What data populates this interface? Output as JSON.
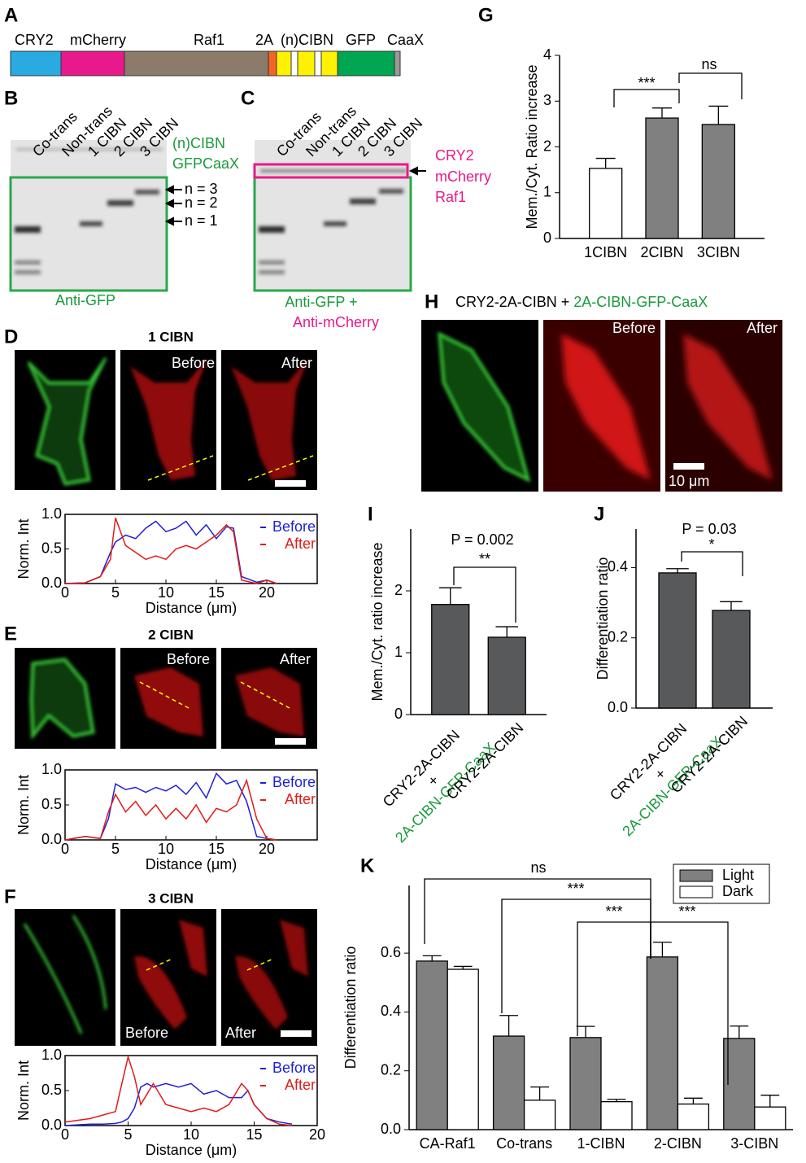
{
  "figure": {
    "panel_a": {
      "letter": "A",
      "labels": [
        "CRY2",
        "mCherry",
        "Raf1",
        "2A",
        "(n)CIBN",
        "GFP",
        "CaaX"
      ]
    },
    "panel_b": {
      "letter": "B",
      "lanes": [
        "Co-trans",
        "Non-trans",
        "1 CIBN",
        "2 CIBN",
        "3 CIBN"
      ],
      "side_label": [
        "(n)CIBN",
        "GFPCaaX"
      ],
      "arrows": [
        "n = 3",
        "n = 2",
        "n = 1"
      ],
      "caption": "Anti-GFP"
    },
    "panel_c": {
      "letter": "C",
      "lanes": [
        "Co-trans",
        "Non-trans",
        "1 CIBN",
        "2 CIBN",
        "3 CIBN"
      ],
      "side_label": [
        "CRY2",
        "mCherry",
        "Raf1"
      ],
      "caption": [
        "Anti-GFP +",
        "Anti-mCherry"
      ]
    },
    "panel_d": {
      "letter": "D",
      "title": "1 CIBN",
      "image_labels": [
        "Before",
        "After"
      ]
    },
    "panel_e": {
      "letter": "E",
      "title": "2 CIBN",
      "image_labels": [
        "Before",
        "After"
      ]
    },
    "panel_f": {
      "letter": "F",
      "title": "3 CIBN",
      "image_labels": [
        "Before",
        "After"
      ]
    },
    "panel_g": {
      "letter": "G"
    },
    "panel_h": {
      "letter": "H",
      "title": [
        "CRY2-2A-CIBN + ",
        "2A-CIBN-GFP-CaaX"
      ],
      "image_labels": [
        "Before",
        "After"
      ],
      "scale_bar": "10 μm"
    },
    "panel_i": {
      "letter": "I"
    },
    "panel_j": {
      "letter": "J"
    },
    "panel_k": {
      "letter": "K"
    }
  },
  "chart_data": [
    {
      "type": "line",
      "ylabel": "Norm. Int",
      "xlabel": "Distance (μm)",
      "x": [
        0,
        2,
        3.5,
        4.5,
        5,
        6,
        7,
        8,
        9,
        10,
        11,
        12,
        13,
        14,
        15,
        16,
        16.7,
        17.5,
        19,
        20,
        21
      ],
      "series": [
        {
          "name": "Before",
          "color": "#1f1fd6",
          "values": [
            0,
            0.01,
            0.1,
            0.45,
            0.6,
            0.7,
            0.65,
            0.8,
            0.9,
            0.75,
            0.8,
            0.9,
            0.7,
            0.85,
            0.65,
            0.82,
            0.8,
            0.1,
            0.02,
            0.05,
            0
          ]
        },
        {
          "name": "After",
          "color": "#e01b1b",
          "values": [
            0,
            0.01,
            0.1,
            0.35,
            0.95,
            0.55,
            0.45,
            0.35,
            0.4,
            0.35,
            0.5,
            0.55,
            0.5,
            0.6,
            0.7,
            0.85,
            0.75,
            0.05,
            0,
            0.05,
            0
          ]
        }
      ],
      "xlim": [
        0,
        25
      ],
      "xticks": [
        0,
        5,
        10,
        15,
        20
      ],
      "ylim": [
        0,
        1
      ],
      "yticks": [
        {
          "value": 0,
          "label": "0.0"
        },
        0.5,
        {
          "value": 1,
          "label": "1.0"
        }
      ]
    },
    {
      "type": "line",
      "ylabel": "Norm. Int",
      "xlabel": "Distance (μm)",
      "x": [
        0,
        2,
        3.5,
        4.3,
        5,
        6,
        7,
        8,
        9,
        10,
        11,
        12,
        13,
        14,
        15,
        16,
        17,
        18,
        19,
        20,
        21
      ],
      "series": [
        {
          "name": "Before",
          "color": "#1f1fd6",
          "values": [
            0,
            0.05,
            0.02,
            0.3,
            0.8,
            0.72,
            0.75,
            0.68,
            0.75,
            0.7,
            0.78,
            0.65,
            0.82,
            0.6,
            0.95,
            0.8,
            0.85,
            0.55,
            0.05,
            0.02,
            0
          ]
        },
        {
          "name": "After",
          "color": "#e01b1b",
          "values": [
            0,
            0.05,
            0.02,
            0.4,
            0.65,
            0.4,
            0.55,
            0.35,
            0.5,
            0.3,
            0.45,
            0.3,
            0.5,
            0.25,
            0.45,
            0.4,
            0.5,
            0.85,
            0.3,
            0.02,
            0
          ]
        }
      ],
      "xlim": [
        0,
        25
      ],
      "xticks": [
        0,
        5,
        10,
        15,
        20
      ],
      "ylim": [
        0,
        1
      ],
      "yticks": [
        {
          "value": 0,
          "label": "0.0"
        },
        0.5,
        {
          "value": 1,
          "label": "1.0"
        }
      ]
    },
    {
      "type": "line",
      "ylabel": "Norm. Int",
      "xlabel": "Distance (μm)",
      "x": [
        0,
        2,
        3,
        4,
        4.5,
        5,
        5.5,
        6,
        6.5,
        7,
        8,
        9,
        10,
        11,
        12,
        13,
        14,
        14.5,
        15,
        16,
        17,
        18
      ],
      "series": [
        {
          "name": "Before",
          "color": "#1f1fd6",
          "values": [
            0,
            0.02,
            0.02,
            0.03,
            0.05,
            0.1,
            0.25,
            0.55,
            0.6,
            0.55,
            0.6,
            0.55,
            0.6,
            0.45,
            0.5,
            0.4,
            0.4,
            0.5,
            0.3,
            0.1,
            0.05,
            0.02
          ]
        },
        {
          "name": "After",
          "color": "#e01b1b",
          "values": [
            0.05,
            0.1,
            0.15,
            0.2,
            0.6,
            0.98,
            0.7,
            0.3,
            0.45,
            0.6,
            0.3,
            0.25,
            0.2,
            0.25,
            0.2,
            0.3,
            0.6,
            0.5,
            0.3,
            0.1,
            0.02,
            0
          ]
        }
      ],
      "xlim": [
        0,
        20
      ],
      "xticks": [
        0,
        5,
        10,
        15,
        20
      ],
      "ylim": [
        0,
        1
      ],
      "yticks": [
        {
          "value": 0,
          "label": "0.0"
        },
        0.5,
        {
          "value": 1,
          "label": "1.0"
        }
      ]
    },
    {
      "type": "bar",
      "ylabel": "Mem./Cyt. Ratio increase",
      "categories": [
        "1CIBN",
        "2CIBN",
        "3CIBN"
      ],
      "values": [
        1.53,
        2.63,
        2.49
      ],
      "errors": [
        0.22,
        0.22,
        0.4
      ],
      "colors": [
        "#ffffff",
        "#808080",
        "#808080"
      ],
      "ylim": [
        0,
        4
      ],
      "yticks": [
        0,
        1,
        2,
        3,
        4
      ],
      "annotations": [
        "***",
        "ns"
      ]
    },
    {
      "type": "bar",
      "ylabel": "Mem./Cyt. ratio increase",
      "categories": [
        [
          "CRY2-2A-CIBN",
          "+",
          "2A-CIBN-GFP-CaaX"
        ],
        [
          "CRY2-2A-CIBN"
        ]
      ],
      "label_colors": [
        [
          "#000000",
          "#000000",
          "#1a9a3c"
        ],
        [
          "#000000"
        ]
      ],
      "values": [
        1.78,
        1.25
      ],
      "errors": [
        0.27,
        0.17
      ],
      "colors": [
        "#58595b",
        "#58595b"
      ],
      "ylim": [
        0,
        3
      ],
      "yticks": [
        0,
        1,
        2
      ],
      "annotations": [
        "P = 0.002",
        "**"
      ]
    },
    {
      "type": "bar",
      "ylabel": "Differentiation ratio",
      "categories": [
        [
          "CRY2-2A-CIBN",
          "+",
          "2A-CIBN-GFP-CaaX"
        ],
        [
          "CRY2-2A-CIBN"
        ]
      ],
      "label_colors": [
        [
          "#000000",
          "#000000",
          "#1a9a3c"
        ],
        [
          "#000000"
        ]
      ],
      "values": [
        0.385,
        0.278
      ],
      "errors": [
        0.012,
        0.025
      ],
      "colors": [
        "#58595b",
        "#58595b"
      ],
      "ylim": [
        0,
        0.51
      ],
      "yticks": [
        {
          "value": 0,
          "label": "0.0"
        },
        0.2,
        0.4
      ],
      "annotations": [
        "P = 0.03",
        "*"
      ]
    },
    {
      "type": "bar",
      "ylabel": "Differentiation ratio",
      "categories": [
        "CA-Raf1",
        "Co-trans",
        "1-CIBN",
        "2-CIBN",
        "3-CIBN"
      ],
      "series": [
        {
          "name": "Light",
          "color": "#808080",
          "values": [
            0.573,
            0.318,
            0.313,
            0.587,
            0.31
          ],
          "errors": [
            0.018,
            0.07,
            0.038,
            0.05,
            0.042
          ]
        },
        {
          "name": "Dark",
          "color": "#ffffff",
          "values": [
            0.545,
            0.1,
            0.095,
            0.087,
            0.077
          ],
          "errors": [
            0.01,
            0.045,
            0.008,
            0.02,
            0.04
          ]
        }
      ],
      "ylim": [
        0,
        0.83
      ],
      "yticks": [
        {
          "value": 0,
          "label": "0.0"
        },
        0.2,
        0.4,
        0.6
      ],
      "annotations": [
        "ns",
        "***",
        "***",
        "***"
      ],
      "legend": "top-right"
    }
  ]
}
